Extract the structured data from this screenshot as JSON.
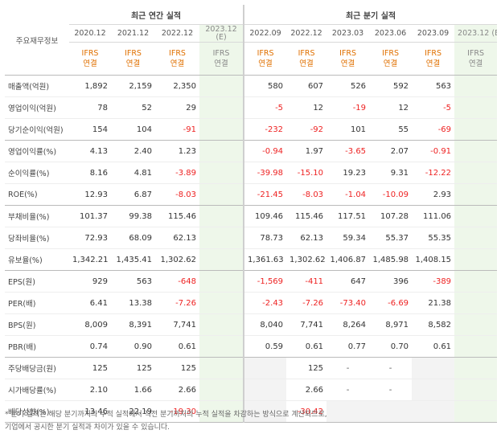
{
  "header": {
    "corner": "주요재무정보",
    "annual_title": "최근 연간 실적",
    "quarter_title": "최근 분기 실적",
    "annual_periods": [
      "2020.12",
      "2021.12",
      "2022.12",
      "2023.12"
    ],
    "quarter_periods": [
      "2022.09",
      "2022.12",
      "2023.03",
      "2023.06",
      "2023.09",
      "2023.12"
    ],
    "estimate_mark": "(E)",
    "ifrs": "IFRS",
    "consolidated": "연결"
  },
  "rows": [
    {
      "label": "매출액(억원)",
      "annual": [
        "1,892",
        "2,159",
        "2,350",
        ""
      ],
      "quarter": [
        "580",
        "607",
        "526",
        "592",
        "563",
        ""
      ]
    },
    {
      "label": "영업이익(억원)",
      "annual": [
        "78",
        "52",
        "29",
        ""
      ],
      "quarter": [
        "-5",
        "12",
        "-19",
        "12",
        "-5",
        ""
      ]
    },
    {
      "label": "당기순이익(억원)",
      "annual": [
        "154",
        "104",
        "-91",
        ""
      ],
      "quarter": [
        "-232",
        "-92",
        "101",
        "55",
        "-69",
        ""
      ]
    },
    {
      "label": "영업이익률(%)",
      "annual": [
        "4.13",
        "2.40",
        "1.23",
        ""
      ],
      "quarter": [
        "-0.94",
        "1.97",
        "-3.65",
        "2.07",
        "-0.91",
        ""
      ]
    },
    {
      "label": "순이익률(%)",
      "annual": [
        "8.16",
        "4.81",
        "-3.89",
        ""
      ],
      "quarter": [
        "-39.98",
        "-15.10",
        "19.23",
        "9.31",
        "-12.22",
        ""
      ]
    },
    {
      "label": "ROE(%)",
      "annual": [
        "12.93",
        "6.87",
        "-8.03",
        ""
      ],
      "quarter": [
        "-21.45",
        "-8.03",
        "-1.04",
        "-10.09",
        "2.93",
        ""
      ]
    },
    {
      "label": "부채비율(%)",
      "annual": [
        "101.37",
        "99.38",
        "115.46",
        ""
      ],
      "quarter": [
        "109.46",
        "115.46",
        "117.51",
        "107.28",
        "111.06",
        ""
      ]
    },
    {
      "label": "당좌비율(%)",
      "annual": [
        "72.93",
        "68.09",
        "62.13",
        ""
      ],
      "quarter": [
        "78.73",
        "62.13",
        "59.34",
        "55.37",
        "55.35",
        ""
      ]
    },
    {
      "label": "유보율(%)",
      "annual": [
        "1,342.21",
        "1,435.41",
        "1,302.62",
        ""
      ],
      "quarter": [
        "1,361.63",
        "1,302.62",
        "1,406.87",
        "1,485.98",
        "1,408.15",
        ""
      ]
    },
    {
      "label": "EPS(원)",
      "annual": [
        "929",
        "563",
        "-648",
        ""
      ],
      "quarter": [
        "-1,569",
        "-411",
        "647",
        "396",
        "-389",
        ""
      ]
    },
    {
      "label": "PER(배)",
      "annual": [
        "6.41",
        "13.38",
        "-7.26",
        ""
      ],
      "quarter": [
        "-2.43",
        "-7.26",
        "-73.40",
        "-6.69",
        "21.38",
        ""
      ]
    },
    {
      "label": "BPS(원)",
      "annual": [
        "8,009",
        "8,391",
        "7,741",
        ""
      ],
      "quarter": [
        "8,040",
        "7,741",
        "8,264",
        "8,971",
        "8,582",
        ""
      ]
    },
    {
      "label": "PBR(배)",
      "annual": [
        "0.74",
        "0.90",
        "0.61",
        ""
      ],
      "quarter": [
        "0.59",
        "0.61",
        "0.77",
        "0.70",
        "0.61",
        ""
      ]
    },
    {
      "label": "주당배당금(원)",
      "annual": [
        "125",
        "125",
        "125",
        ""
      ],
      "quarter": [
        "",
        "125",
        "-",
        "-",
        "",
        ""
      ]
    },
    {
      "label": "시가배당률(%)",
      "annual": [
        "2.10",
        "1.66",
        "2.66",
        ""
      ],
      "quarter": [
        "",
        "2.66",
        "-",
        "-",
        "",
        ""
      ]
    },
    {
      "label": "배당성향(%)",
      "annual": [
        "13.46",
        "22.19",
        "-19.30",
        ""
      ],
      "quarter": [
        "",
        "-30.42",
        "",
        "",
        "",
        ""
      ]
    }
  ],
  "note": [
    "* 분기 실적은 해당 분기까지의 누적 실적에서 직전 분기까지의 누적 실적을 차감하는 방식으로 계산되므로,",
    "  기업에서 공시한 분기 실적과 차이가 있을 수 있습니다."
  ]
}
